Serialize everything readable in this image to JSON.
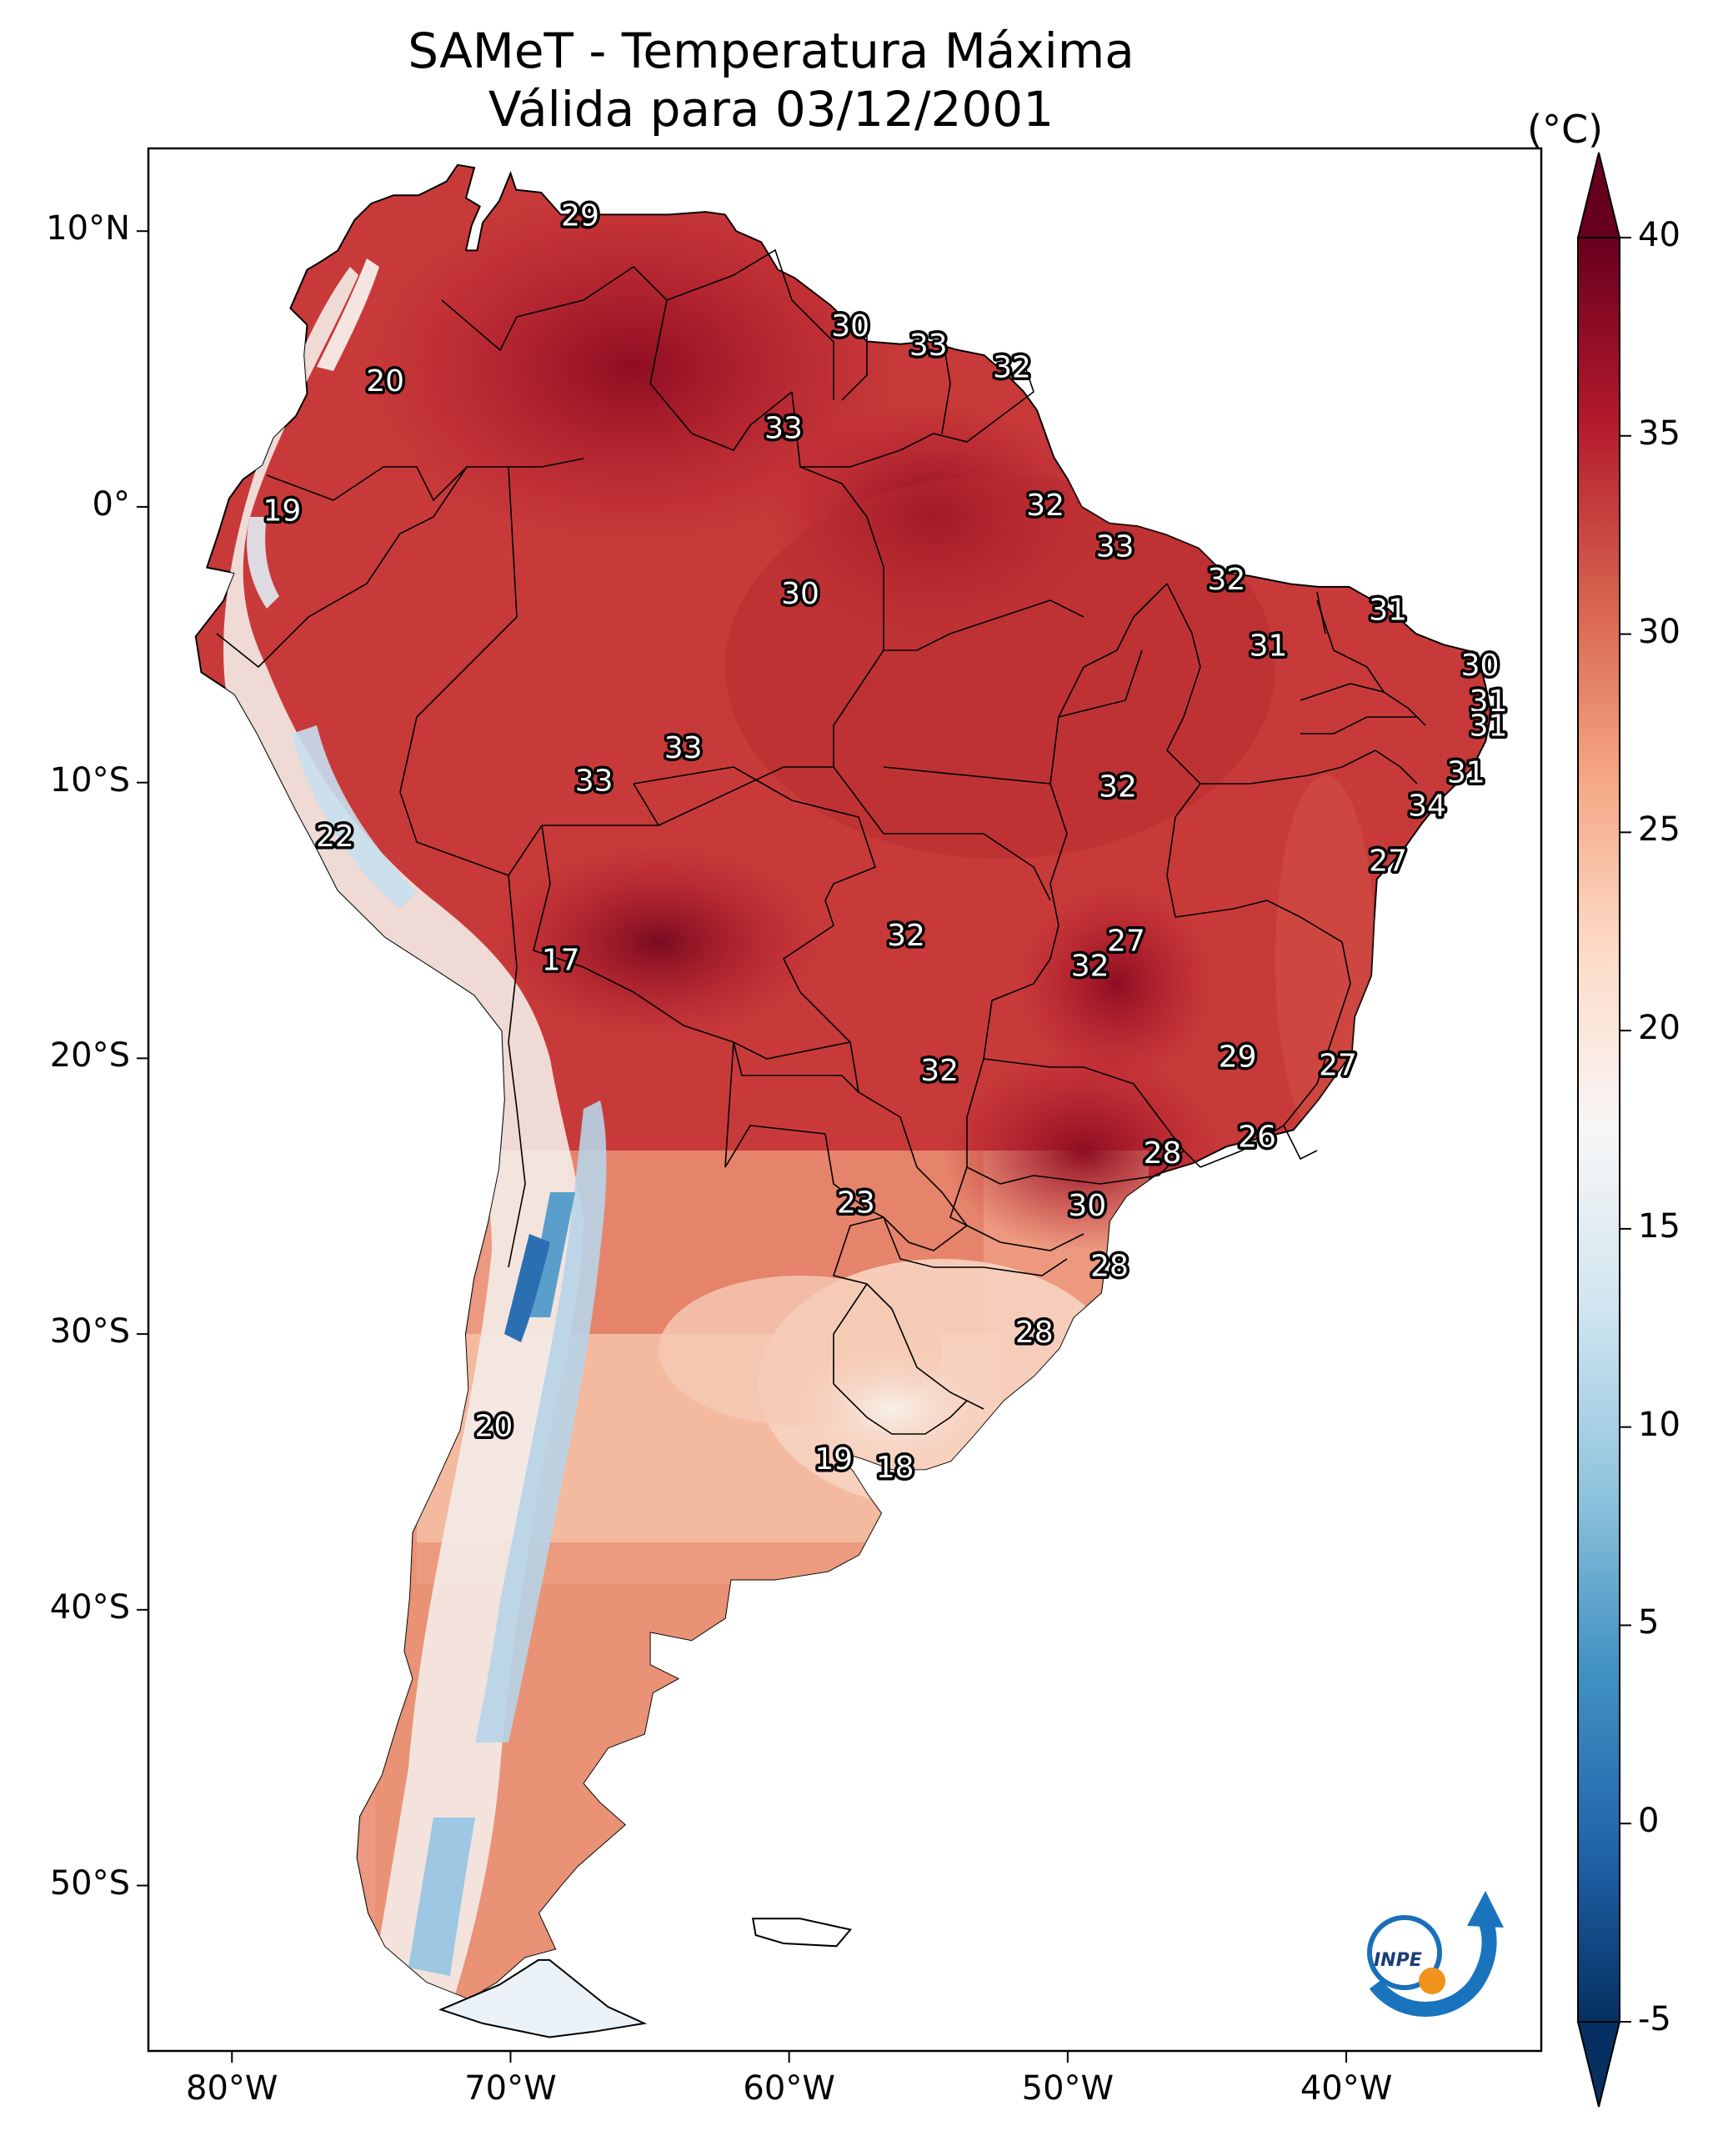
{
  "title": {
    "line1": "SAMeT - Temperatura Máxima",
    "line2": "Válida para 03/12/2001"
  },
  "map": {
    "lon_ticks": [
      "80°W",
      "70°W",
      "60°W",
      "50°W",
      "40°W"
    ],
    "lat_ticks": [
      "10°N",
      "0°",
      "10°S",
      "20°S",
      "30°S",
      "40°S",
      "50°S"
    ]
  },
  "colorbar": {
    "unit": "(°C)",
    "ticks": [
      "40",
      "35",
      "30",
      "25",
      "20",
      "15",
      "10",
      "5",
      "0",
      "-5"
    ],
    "min": -5,
    "max": 40,
    "colors": [
      "#053061",
      "#2166ac",
      "#4393c3",
      "#92c5de",
      "#d1e5f0",
      "#f7f7f7",
      "#fddbc7",
      "#f4a582",
      "#d6604d",
      "#b2182b",
      "#67001f"
    ]
  },
  "station_labels": [
    {
      "value": "29",
      "lon": -67.5,
      "lat": 10.5
    },
    {
      "value": "20",
      "lon": -74.5,
      "lat": 4.5
    },
    {
      "value": "30",
      "lon": -57.8,
      "lat": 6.5
    },
    {
      "value": "33",
      "lon": -55.0,
      "lat": 5.8
    },
    {
      "value": "32",
      "lon": -52.0,
      "lat": 5.0
    },
    {
      "value": "33",
      "lon": -60.2,
      "lat": 2.8
    },
    {
      "value": "19",
      "lon": -78.2,
      "lat": -0.2
    },
    {
      "value": "32",
      "lon": -50.8,
      "lat": 0.0
    },
    {
      "value": "33",
      "lon": -48.3,
      "lat": -1.5
    },
    {
      "value": "32",
      "lon": -44.3,
      "lat": -2.7
    },
    {
      "value": "30",
      "lon": -59.6,
      "lat": -3.2
    },
    {
      "value": "31",
      "lon": -38.5,
      "lat": -3.8
    },
    {
      "value": "31",
      "lon": -42.8,
      "lat": -5.1
    },
    {
      "value": "30",
      "lon": -35.2,
      "lat": -5.8
    },
    {
      "value": "31",
      "lon": -34.9,
      "lat": -7.1
    },
    {
      "value": "31",
      "lon": -34.9,
      "lat": -8.0
    },
    {
      "value": "33",
      "lon": -63.8,
      "lat": -8.8
    },
    {
      "value": "33",
      "lon": -67.0,
      "lat": -10.0
    },
    {
      "value": "32",
      "lon": -48.2,
      "lat": -10.2
    },
    {
      "value": "31",
      "lon": -35.7,
      "lat": -9.7
    },
    {
      "value": "34",
      "lon": -37.1,
      "lat": -10.9
    },
    {
      "value": "22",
      "lon": -76.3,
      "lat": -12.0
    },
    {
      "value": "27",
      "lon": -38.5,
      "lat": -12.9
    },
    {
      "value": "32",
      "lon": -55.8,
      "lat": -15.6
    },
    {
      "value": "27",
      "lon": -47.9,
      "lat": -15.8
    },
    {
      "value": "32",
      "lon": -49.2,
      "lat": -16.7
    },
    {
      "value": "17",
      "lon": -68.2,
      "lat": -16.5
    },
    {
      "value": "29",
      "lon": -43.9,
      "lat": -20.0
    },
    {
      "value": "27",
      "lon": -40.3,
      "lat": -20.3
    },
    {
      "value": "32",
      "lon": -54.6,
      "lat": -20.5
    },
    {
      "value": "26",
      "lon": -43.2,
      "lat": -22.9
    },
    {
      "value": "28",
      "lon": -46.6,
      "lat": -23.5
    },
    {
      "value": "23",
      "lon": -57.6,
      "lat": -25.3
    },
    {
      "value": "30",
      "lon": -49.3,
      "lat": -25.4
    },
    {
      "value": "28",
      "lon": -48.5,
      "lat": -27.6
    },
    {
      "value": "28",
      "lon": -51.2,
      "lat": -30.0
    },
    {
      "value": "20",
      "lon": -70.6,
      "lat": -33.4
    },
    {
      "value": "19",
      "lon": -58.4,
      "lat": -34.6
    },
    {
      "value": "18",
      "lon": -56.2,
      "lat": -34.9
    }
  ],
  "logo": {
    "text": "INPE"
  }
}
